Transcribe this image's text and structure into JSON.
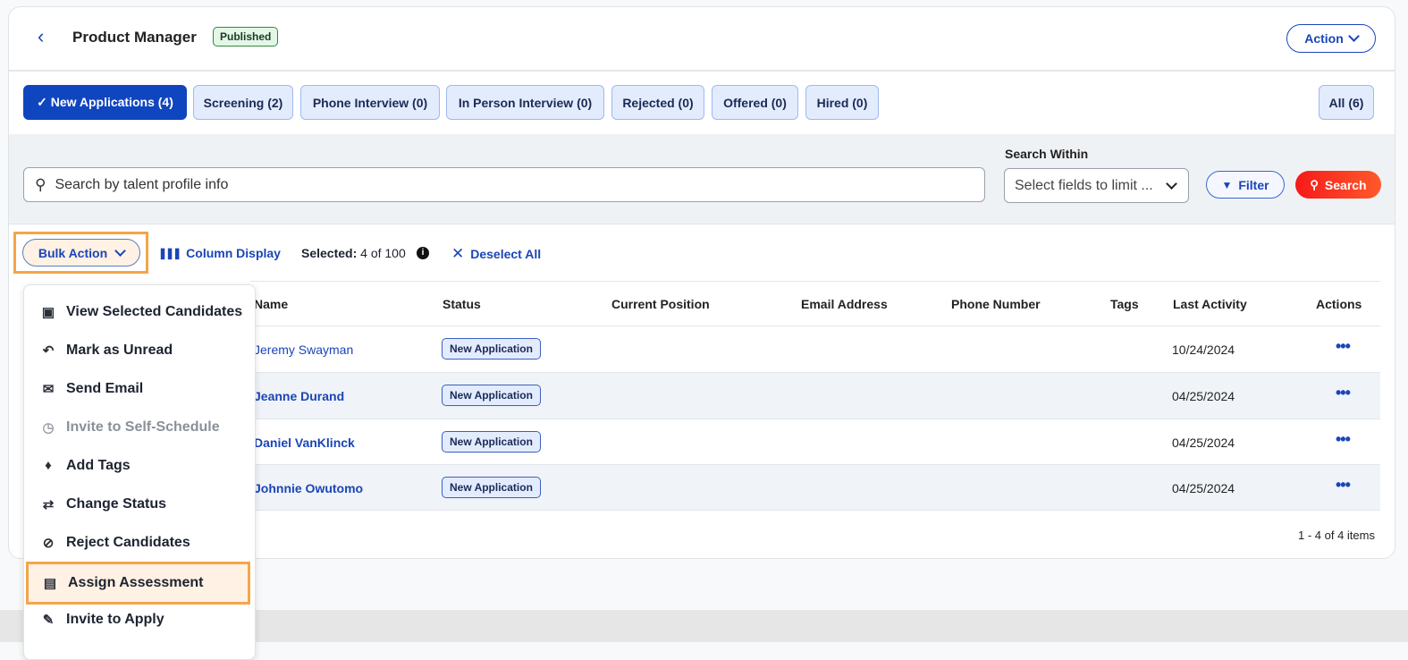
{
  "header": {
    "title": "Product Manager",
    "status_badge": "Published",
    "action_label": "Action"
  },
  "tabs": [
    {
      "label": "✓ New Applications (4)",
      "active": true
    },
    {
      "label": "Screening (2)"
    },
    {
      "label": "Phone Interview (0)"
    },
    {
      "label": "In Person Interview (0)"
    },
    {
      "label": "Rejected (0)"
    },
    {
      "label": "Offered (0)"
    },
    {
      "label": "Hired (0)"
    },
    {
      "label": "All (6)"
    }
  ],
  "search": {
    "placeholder": "Search by talent profile info",
    "within_label": "Search Within",
    "within_placeholder": "Select fields to limit ...",
    "filter_label": "Filter",
    "search_label": "Search"
  },
  "toolbar": {
    "bulk_action": "Bulk Action",
    "column_display": "Column Display",
    "selected_label": "Selected:",
    "selected_value": "4 of 100",
    "deselect_all": "Deselect All"
  },
  "table": {
    "columns": [
      "Name",
      "Status",
      "Current Position",
      "Email Address",
      "Phone Number",
      "Tags",
      "Last Activity",
      "Actions"
    ],
    "rows": [
      {
        "name": "Jeremy Swayman",
        "status": "New Application",
        "last_activity": "10/24/2024"
      },
      {
        "name": "Jeanne Durand",
        "status": "New Application",
        "last_activity": "04/25/2024"
      },
      {
        "name": "Daniel VanKlinck",
        "status": "New Application",
        "last_activity": "04/25/2024"
      },
      {
        "name": "Johnnie Owutomo",
        "status": "New Application",
        "last_activity": "04/25/2024"
      }
    ],
    "pagination": "1 - 4 of 4 items"
  },
  "bulk_menu": [
    {
      "label": "View Selected Candidates",
      "icon": "contact-book-icon"
    },
    {
      "label": "Mark as Unread",
      "icon": "reply-icon"
    },
    {
      "label": "Send Email",
      "icon": "envelope-icon"
    },
    {
      "label": "Invite to Self-Schedule",
      "icon": "calendar-clock-icon",
      "disabled": true
    },
    {
      "label": "Add Tags",
      "icon": "tag-icon"
    },
    {
      "label": "Change Status",
      "icon": "swap-arrows-icon"
    },
    {
      "label": "Reject Candidates",
      "icon": "ban-icon"
    },
    {
      "label": "Assign Assessment",
      "icon": "assessment-icon",
      "highlighted": true
    },
    {
      "label": "Invite to Apply",
      "icon": "document-edit-icon"
    }
  ],
  "colors": {
    "primary": "#1045c0",
    "search": "#f5331f",
    "highlight": "#f4a54a",
    "published": "#2e8b3a"
  }
}
